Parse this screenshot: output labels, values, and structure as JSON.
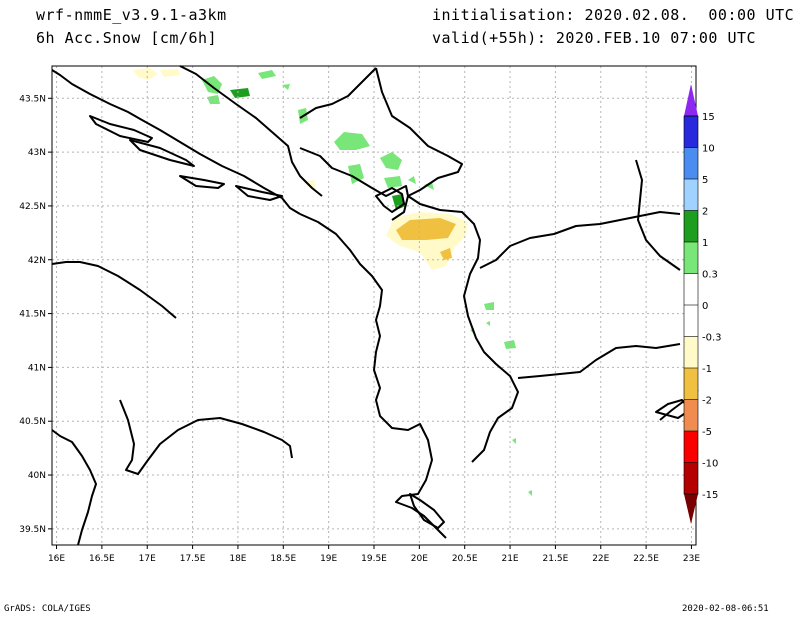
{
  "header": {
    "model": "wrf-nmmE_v3.9.1-a3km",
    "field": "6h Acc.Snow [cm/6h]",
    "init": "initialisation: 2020.02.08.  00:00 UTC",
    "valid": "valid(+55h): 2020.FEB.10 07:00 UTC"
  },
  "footer": {
    "left": "GrADS: COLA/IGES",
    "right": "2020-02-08-06:51"
  },
  "map": {
    "lat_labels": [
      "43.5N",
      "43N",
      "42.5N",
      "42N",
      "41.5N",
      "41N",
      "40.5N",
      "40N",
      "39.5N"
    ],
    "lon_labels": [
      "16E",
      "16.5E",
      "17E",
      "17.5E",
      "18E",
      "18.5E",
      "19E",
      "19.5E",
      "20E",
      "20.5E",
      "21E",
      "21.5E",
      "22E",
      "22.5E",
      "23E"
    ],
    "lat_values": [
      43.5,
      43,
      42.5,
      42,
      41.5,
      41,
      40.5,
      40,
      39.5
    ],
    "lon_values": [
      16,
      16.5,
      17,
      17.5,
      18,
      18.5,
      19,
      19.5,
      20,
      20.5,
      21,
      21.5,
      22,
      22.5,
      23
    ],
    "lat_range": [
      39.35,
      43.8
    ],
    "lon_range": [
      15.95,
      23.05
    ]
  },
  "colorbar": {
    "labels": [
      "15",
      "10",
      "5",
      "2",
      "1",
      "0.3",
      "0",
      "-0.3",
      "-1",
      "-2",
      "-5",
      "-10",
      "-15"
    ],
    "colors": [
      "#a020f0",
      "#2828dc",
      "#4b8cf0",
      "#a0d2ff",
      "#1e9e1e",
      "#78e678",
      "#ffffff",
      "#ffffff",
      "#fffac8",
      "#fadc8c",
      "#f0b43c",
      "#f08c50",
      "#fa0000",
      "#b40000",
      "#780000"
    ],
    "positive_bands": [
      "#2828dc",
      "#4b8cf0",
      "#a0d2ff",
      "#1e9e1e",
      "#78e678"
    ],
    "negative_bands": [
      "#fffac8",
      "#f0c040",
      "#f08c50",
      "#fa0000",
      "#b40000"
    ]
  }
}
